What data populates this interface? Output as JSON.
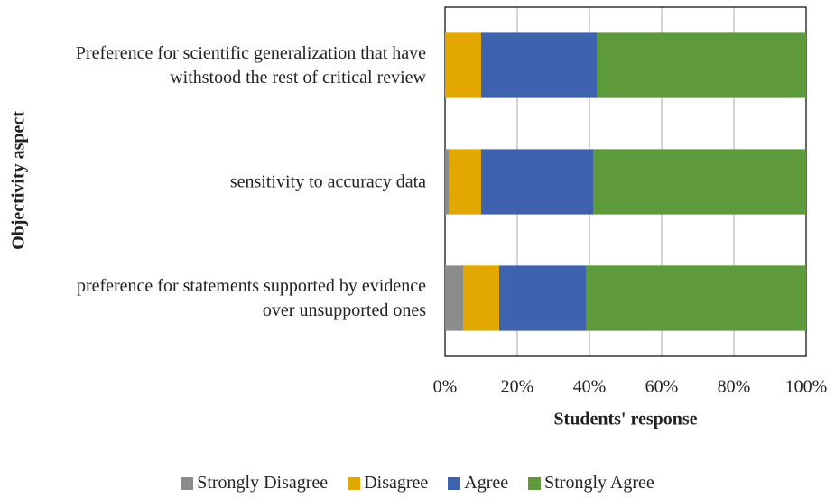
{
  "chart_data": {
    "type": "stacked_barh",
    "categories": [
      "Preference for scientific generalization that have withstood the rest of critical review",
      "sensitivity to accuracy data",
      "preference for statements supported by evidence over unsupported ones"
    ],
    "series": [
      {
        "name": "Strongly Disagree",
        "color": "#8c8c8c",
        "values": [
          0,
          1,
          5
        ]
      },
      {
        "name": "Disagree",
        "color": "#e3a800",
        "values": [
          10,
          9,
          10
        ]
      },
      {
        "name": "Agree",
        "color": "#3f62ae",
        "values": [
          32,
          31,
          24
        ]
      },
      {
        "name": "Strongly Agree",
        "color": "#5e9a3c",
        "values": [
          58,
          59,
          61
        ]
      }
    ],
    "xlim": [
      0,
      100
    ],
    "xticks": [
      {
        "value": 0,
        "label": "0%"
      },
      {
        "value": 20,
        "label": "20%"
      },
      {
        "value": 40,
        "label": "40%"
      },
      {
        "value": 60,
        "label": "60%"
      },
      {
        "value": 80,
        "label": "80%"
      },
      {
        "value": 100,
        "label": "100%"
      }
    ],
    "xlabel": "Students' response",
    "ylabel": "Objectivity aspect",
    "grid": true,
    "legend": "bottom"
  }
}
